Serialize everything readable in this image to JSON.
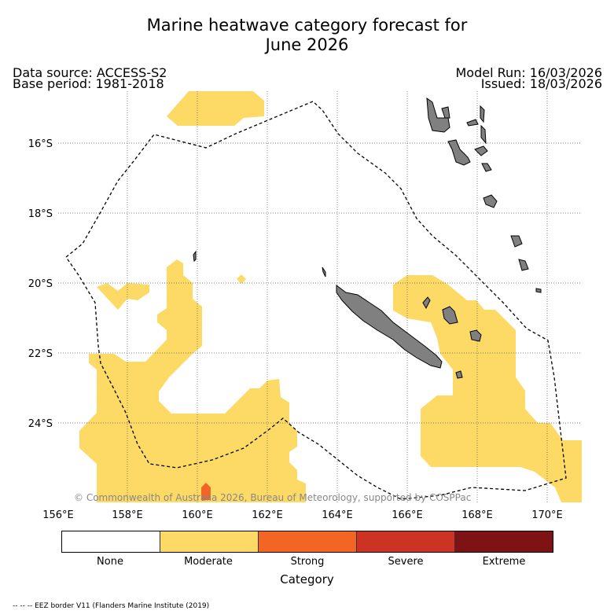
{
  "title_line1": "Marine heatwave category forecast for",
  "title_line2": "June 2026",
  "data_source": "Data source: ACCESS-S2",
  "base_period": "Base period: 1981-2018",
  "model_run": "Model Run: 16/03/2026",
  "issued": "Issued: 18/03/2026",
  "copyright": "© Commonwealth of Australia 2026, Bureau of Meteorology, supported by COSPPac",
  "lon_ticks": [
    "156°E",
    "158°E",
    "160°E",
    "162°E",
    "164°E",
    "166°E",
    "168°E",
    "170°E"
  ],
  "lat_ticks": [
    "16°S",
    "18°S",
    "20°S",
    "22°S",
    "24°S"
  ],
  "legend": {
    "title": "Category",
    "items": [
      {
        "label": "None",
        "color": "#ffffff"
      },
      {
        "label": "Moderate",
        "color": "#fdd966"
      },
      {
        "label": "Strong",
        "color": "#f26522"
      },
      {
        "label": "Severe",
        "color": "#cc3325"
      },
      {
        "label": "Extreme",
        "color": "#7d1315"
      }
    ]
  },
  "eez_note": "-- -- -- EEZ border V11 (Flanders Marine Institute (2019)",
  "colors": {
    "land": "#808080",
    "moderate": "#fdd966",
    "strong": "#f26522",
    "grid": "#555555"
  }
}
